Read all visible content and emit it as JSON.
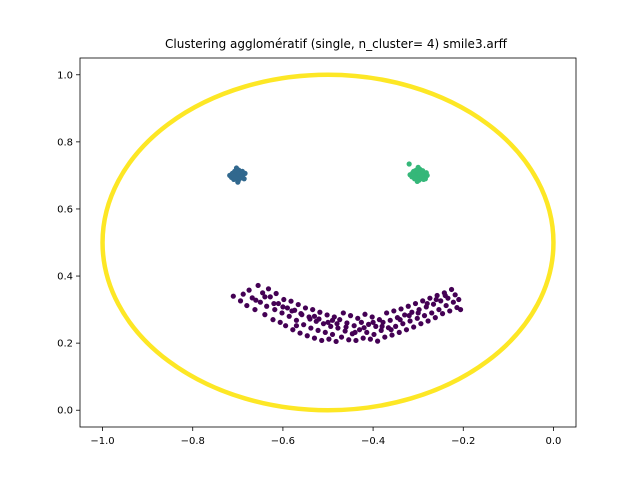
{
  "chart_data": {
    "type": "scatter",
    "title": "Clustering agglomératif (single, n_cluster= 4) smile3.arff",
    "xlabel": "",
    "ylabel": "",
    "xlim": [
      -1.05,
      0.05
    ],
    "ylim": [
      -0.05,
      1.05
    ],
    "xticks": [
      -1.0,
      -0.8,
      -0.6,
      -0.4,
      -0.2,
      0.0
    ],
    "xtick_labels": [
      "−1.0",
      "−0.8",
      "−0.6",
      "−0.4",
      "−0.2",
      "0.0"
    ],
    "yticks": [
      0.0,
      0.2,
      0.4,
      0.6,
      0.8,
      1.0
    ],
    "ytick_labels": [
      "0.0",
      "0.2",
      "0.4",
      "0.6",
      "0.8",
      "1.0"
    ],
    "grid": false,
    "legend": "none",
    "series": [
      {
        "cluster": 0,
        "color": "#440154",
        "points": [
          [
            -0.71,
            0.34
          ],
          [
            -0.694,
            0.326
          ],
          [
            -0.688,
            0.346
          ],
          [
            -0.68,
            0.312
          ],
          [
            -0.675,
            0.358
          ],
          [
            -0.668,
            0.335
          ],
          [
            -0.662,
            0.3
          ],
          [
            -0.655,
            0.372
          ],
          [
            -0.65,
            0.322
          ],
          [
            -0.645,
            0.35
          ],
          [
            -0.64,
            0.285
          ],
          [
            -0.636,
            0.31
          ],
          [
            -0.632,
            0.362
          ],
          [
            -0.628,
            0.338
          ],
          [
            -0.622,
            0.27
          ],
          [
            -0.618,
            0.3
          ],
          [
            -0.615,
            0.348
          ],
          [
            -0.61,
            0.318
          ],
          [
            -0.606,
            0.262
          ],
          [
            -0.602,
            0.29
          ],
          [
            -0.598,
            0.33
          ],
          [
            -0.594,
            0.252
          ],
          [
            -0.59,
            0.305
          ],
          [
            -0.586,
            0.28
          ],
          [
            -0.582,
            0.325
          ],
          [
            -0.578,
            0.24
          ],
          [
            -0.574,
            0.298
          ],
          [
            -0.57,
            0.268
          ],
          [
            -0.566,
            0.315
          ],
          [
            -0.562,
            0.23
          ],
          [
            -0.558,
            0.285
          ],
          [
            -0.554,
            0.255
          ],
          [
            -0.55,
            0.305
          ],
          [
            -0.546,
            0.222
          ],
          [
            -0.542,
            0.278
          ],
          [
            -0.538,
            0.245
          ],
          [
            -0.534,
            0.3
          ],
          [
            -0.53,
            0.215
          ],
          [
            -0.526,
            0.265
          ],
          [
            -0.522,
            0.238
          ],
          [
            -0.518,
            0.292
          ],
          [
            -0.514,
            0.208
          ],
          [
            -0.51,
            0.258
          ],
          [
            -0.506,
            0.232
          ],
          [
            -0.502,
            0.284
          ],
          [
            -0.498,
            0.212
          ],
          [
            -0.494,
            0.25
          ],
          [
            -0.49,
            0.226
          ],
          [
            -0.486,
            0.278
          ],
          [
            -0.482,
            0.205
          ],
          [
            -0.478,
            0.245
          ],
          [
            -0.474,
            0.27
          ],
          [
            -0.47,
            0.218
          ],
          [
            -0.466,
            0.29
          ],
          [
            -0.462,
            0.236
          ],
          [
            -0.458,
            0.26
          ],
          [
            -0.454,
            0.21
          ],
          [
            -0.45,
            0.282
          ],
          [
            -0.446,
            0.228
          ],
          [
            -0.442,
            0.252
          ],
          [
            -0.438,
            0.208
          ],
          [
            -0.434,
            0.274
          ],
          [
            -0.43,
            0.24
          ],
          [
            -0.426,
            0.262
          ],
          [
            -0.422,
            0.215
          ],
          [
            -0.418,
            0.286
          ],
          [
            -0.414,
            0.232
          ],
          [
            -0.41,
            0.256
          ],
          [
            -0.406,
            0.212
          ],
          [
            -0.402,
            0.278
          ],
          [
            -0.398,
            0.226
          ],
          [
            -0.394,
            0.25
          ],
          [
            -0.39,
            0.206
          ],
          [
            -0.386,
            0.27
          ],
          [
            -0.382,
            0.238
          ],
          [
            -0.378,
            0.262
          ],
          [
            -0.374,
            0.218
          ],
          [
            -0.37,
            0.29
          ],
          [
            -0.366,
            0.246
          ],
          [
            -0.362,
            0.268
          ],
          [
            -0.358,
            0.224
          ],
          [
            -0.354,
            0.296
          ],
          [
            -0.35,
            0.25
          ],
          [
            -0.346,
            0.276
          ],
          [
            -0.342,
            0.232
          ],
          [
            -0.338,
            0.302
          ],
          [
            -0.334,
            0.258
          ],
          [
            -0.33,
            0.284
          ],
          [
            -0.326,
            0.24
          ],
          [
            -0.322,
            0.31
          ],
          [
            -0.318,
            0.266
          ],
          [
            -0.314,
            0.292
          ],
          [
            -0.31,
            0.248
          ],
          [
            -0.306,
            0.318
          ],
          [
            -0.302,
            0.274
          ],
          [
            -0.298,
            0.3
          ],
          [
            -0.294,
            0.258
          ],
          [
            -0.29,
            0.326
          ],
          [
            -0.286,
            0.282
          ],
          [
            -0.282,
            0.308
          ],
          [
            -0.278,
            0.266
          ],
          [
            -0.274,
            0.334
          ],
          [
            -0.27,
            0.29
          ],
          [
            -0.266,
            0.316
          ],
          [
            -0.262,
            0.276
          ],
          [
            -0.258,
            0.342
          ],
          [
            -0.254,
            0.3
          ],
          [
            -0.25,
            0.326
          ],
          [
            -0.246,
            0.288
          ],
          [
            -0.242,
            0.35
          ],
          [
            -0.238,
            0.312
          ],
          [
            -0.234,
            0.334
          ],
          [
            -0.23,
            0.296
          ],
          [
            -0.226,
            0.36
          ],
          [
            -0.222,
            0.322
          ],
          [
            -0.218,
            0.344
          ],
          [
            -0.214,
            0.306
          ],
          [
            -0.21,
            0.33
          ],
          [
            -0.206,
            0.3
          ],
          [
            -0.52,
            0.272
          ],
          [
            -0.5,
            0.262
          ],
          [
            -0.48,
            0.258
          ],
          [
            -0.46,
            0.248
          ],
          [
            -0.44,
            0.232
          ],
          [
            -0.42,
            0.246
          ],
          [
            -0.4,
            0.262
          ],
          [
            -0.38,
            0.25
          ],
          [
            -0.36,
            0.24
          ],
          [
            -0.34,
            0.27
          ],
          [
            -0.32,
            0.282
          ],
          [
            -0.3,
            0.29
          ],
          [
            -0.28,
            0.318
          ],
          [
            -0.26,
            0.33
          ],
          [
            -0.24,
            0.342
          ],
          [
            -0.62,
            0.318
          ],
          [
            -0.6,
            0.308
          ],
          [
            -0.58,
            0.296
          ],
          [
            -0.56,
            0.288
          ],
          [
            -0.54,
            0.272
          ],
          [
            -0.66,
            0.328
          ],
          [
            -0.64,
            0.338
          ],
          [
            -0.57,
            0.252
          ],
          [
            -0.53,
            0.28
          ],
          [
            -0.49,
            0.268
          ]
        ]
      },
      {
        "cluster": 1,
        "color": "#31688e",
        "points": [
          [
            -0.718,
            0.7
          ],
          [
            -0.714,
            0.694
          ],
          [
            -0.712,
            0.706
          ],
          [
            -0.709,
            0.688
          ],
          [
            -0.707,
            0.712
          ],
          [
            -0.705,
            0.7
          ],
          [
            -0.703,
            0.694
          ],
          [
            -0.701,
            0.708
          ],
          [
            -0.699,
            0.684
          ],
          [
            -0.698,
            0.716
          ],
          [
            -0.696,
            0.7
          ],
          [
            -0.694,
            0.692
          ],
          [
            -0.692,
            0.71
          ],
          [
            -0.69,
            0.698
          ],
          [
            -0.688,
            0.704
          ],
          [
            -0.686,
            0.69
          ],
          [
            -0.684,
            0.706
          ],
          [
            -0.703,
            0.722
          ],
          [
            -0.7,
            0.68
          ],
          [
            -0.695,
            0.702
          ],
          [
            -0.71,
            0.698
          ],
          [
            -0.69,
            0.712
          ],
          [
            -0.706,
            0.69
          ],
          [
            -0.698,
            0.704
          ],
          [
            -0.693,
            0.696
          ]
        ]
      },
      {
        "cluster": 2,
        "color": "#35b779",
        "points": [
          [
            -0.318,
            0.702
          ],
          [
            -0.314,
            0.696
          ],
          [
            -0.312,
            0.708
          ],
          [
            -0.308,
            0.69
          ],
          [
            -0.306,
            0.714
          ],
          [
            -0.304,
            0.7
          ],
          [
            -0.302,
            0.694
          ],
          [
            -0.3,
            0.71
          ],
          [
            -0.298,
            0.686
          ],
          [
            -0.296,
            0.718
          ],
          [
            -0.294,
            0.702
          ],
          [
            -0.292,
            0.692
          ],
          [
            -0.29,
            0.712
          ],
          [
            -0.288,
            0.698
          ],
          [
            -0.286,
            0.706
          ],
          [
            -0.284,
            0.69
          ],
          [
            -0.282,
            0.708
          ],
          [
            -0.3,
            0.724
          ],
          [
            -0.302,
            0.682
          ],
          [
            -0.296,
            0.7
          ],
          [
            -0.31,
            0.698
          ],
          [
            -0.29,
            0.714
          ],
          [
            -0.306,
            0.692
          ],
          [
            -0.298,
            0.706
          ],
          [
            -0.292,
            0.696
          ],
          [
            -0.32,
            0.734
          ],
          [
            -0.28,
            0.7
          ],
          [
            -0.304,
            0.716
          ],
          [
            -0.288,
            0.688
          ],
          [
            -0.31,
            0.712
          ]
        ]
      },
      {
        "cluster": 3,
        "color": "#fde725",
        "shape": "circle",
        "center": [
          -0.5,
          0.5
        ],
        "radius": 0.5
      }
    ]
  }
}
